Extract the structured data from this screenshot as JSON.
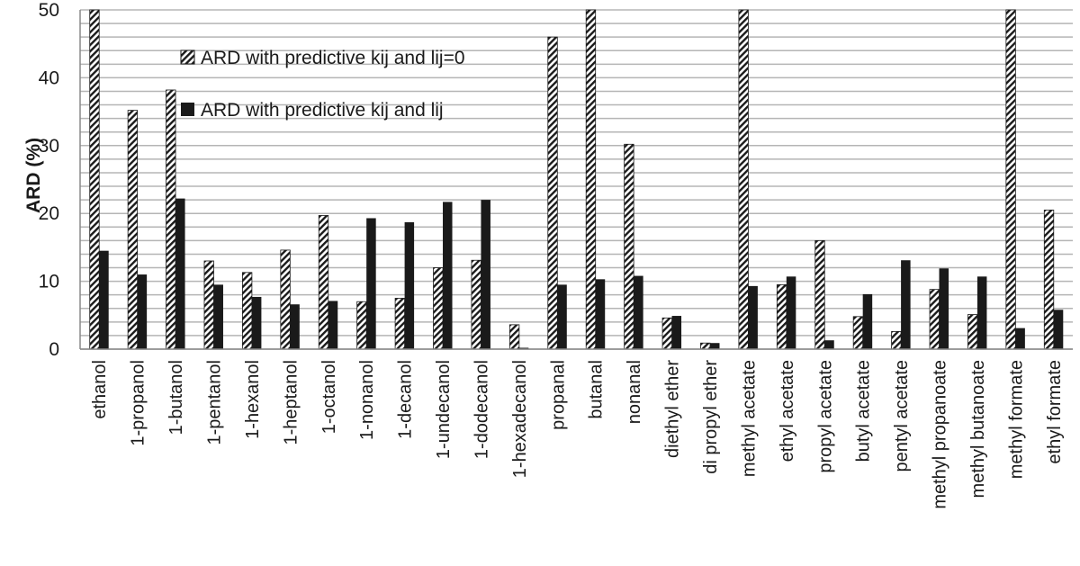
{
  "chart_data": {
    "type": "bar",
    "ylabel": "ARD (%)",
    "ylim": [
      0,
      50
    ],
    "yticks": [
      0,
      10,
      20,
      30,
      40,
      50
    ],
    "grid": true,
    "legend_placement": "top-left",
    "categories": [
      "ethanol",
      "1-propanol",
      "1-butanol",
      "1-pentanol",
      "1-hexanol",
      "1-heptanol",
      "1-octanol",
      "1-nonanol",
      "1-decanol",
      "1-undecanol",
      "1-dodecanol",
      "1-hexadecanol",
      "propanal",
      "butanal",
      "nonanal",
      "diethyl ether",
      "di propyl ether",
      "methyl acetate",
      "ethyl acetate",
      "propyl acetate",
      "butyl acetate",
      "pentyl acetate",
      "methyl propanoate",
      "methyl butanoate",
      "methyl formate",
      "ethyl formate"
    ],
    "series": [
      {
        "name": "ARD with predictive kij and lij=0",
        "pattern": "hatched",
        "color": "#1a1a1a",
        "values": [
          50,
          35.2,
          38.2,
          13.0,
          11.3,
          14.6,
          19.7,
          7.0,
          7.5,
          12.0,
          13.1,
          3.6,
          46.0,
          50,
          30.2,
          4.6,
          0.9,
          50,
          9.5,
          16.0,
          4.8,
          2.6,
          8.8,
          5.1,
          50,
          20.5
        ]
      },
      {
        "name": "ARD with predictive kij and lij",
        "pattern": "solid",
        "color": "#1a1a1a",
        "values": [
          14.5,
          11.0,
          22.2,
          9.5,
          7.7,
          6.6,
          7.1,
          19.3,
          18.7,
          21.7,
          22.0,
          0.2,
          9.5,
          10.3,
          10.8,
          4.9,
          0.9,
          9.3,
          10.7,
          1.3,
          8.1,
          13.1,
          11.9,
          10.7,
          3.1,
          5.8
        ]
      }
    ]
  }
}
